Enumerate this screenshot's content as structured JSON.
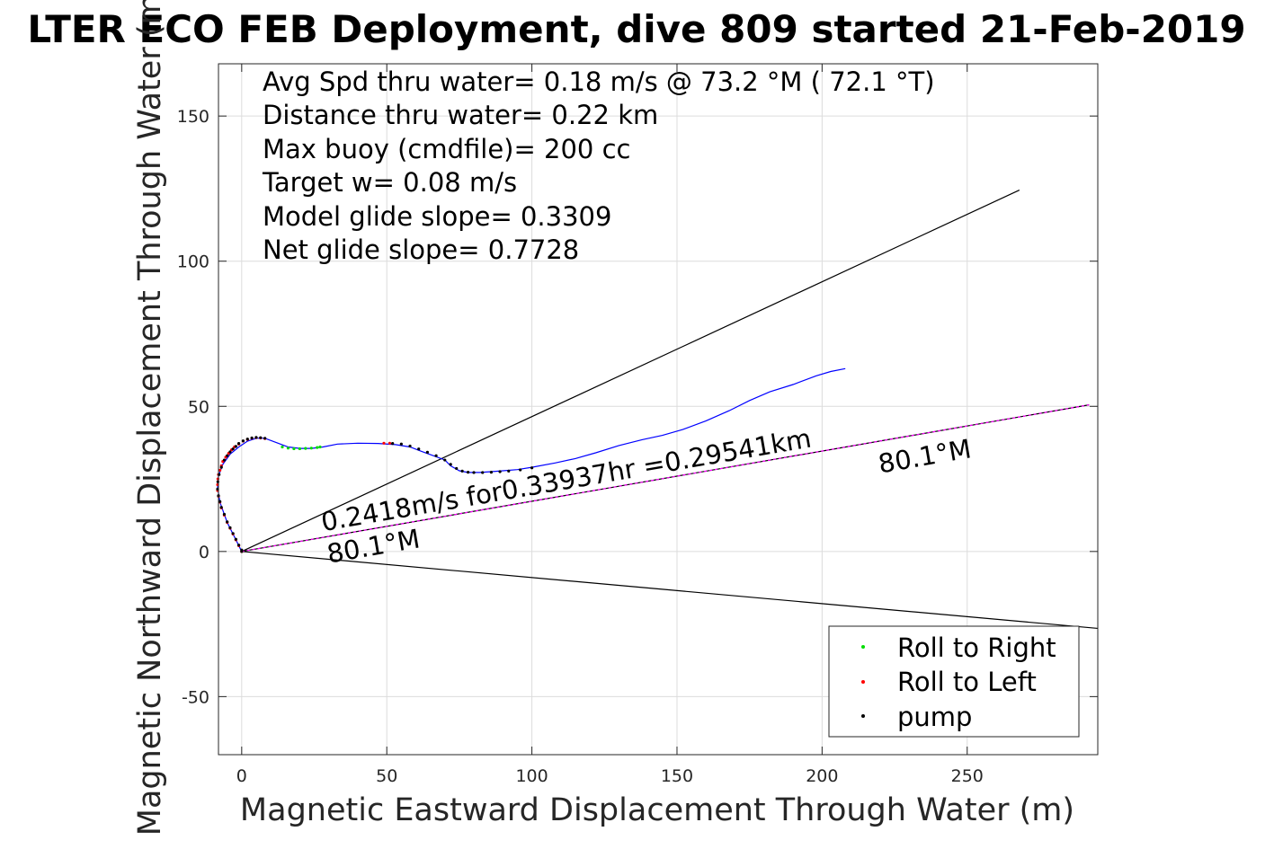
{
  "chart_data": {
    "type": "scatter",
    "title": "LTER ECO FEB Deployment, dive 809 started 21-Feb-2019",
    "xlabel": "Magnetic Eastward Displacement Through Water (m)",
    "ylabel": "Magnetic Northward Displacement Through Water (m)",
    "xlim": [
      -8,
      295
    ],
    "ylim": [
      -70,
      168
    ],
    "xticks": [
      0,
      50,
      100,
      150,
      200,
      250
    ],
    "yticks": [
      -50,
      0,
      50,
      100,
      150
    ],
    "xtick_labels": [
      "0",
      "50",
      "100",
      "150",
      "200",
      "250"
    ],
    "ytick_labels": [
      "-50",
      "0",
      "50",
      "100",
      "150"
    ],
    "grid": true,
    "legend_position": "bottom-right",
    "info_lines": [
      "Avg Spd thru water=  0.18 m/s @  73.2 °M ( 72.1 °T)",
      "Distance thru water=  0.22 km",
      "Max buoy (cmdfile)= 200 cc",
      "Target w= 0.08 m/s",
      "Model glide slope= 0.3309",
      "Net glide slope= 0.7728"
    ],
    "rotated_annotations": [
      {
        "text": "0.2418m/s for0.33937hr =0.29541km",
        "x": 28,
        "y": 7,
        "angle_deg": 9.8
      },
      {
        "text": "80.1°M",
        "x": 30,
        "y": -4,
        "angle_deg": 9.8
      },
      {
        "text": "80.1°M",
        "x": 220,
        "y": 27,
        "angle_deg": 9.8
      }
    ],
    "reference_lines": [
      {
        "x": [
          0,
          268
        ],
        "y": [
          0,
          124.5
        ],
        "color": "#000000"
      },
      {
        "x": [
          0,
          295
        ],
        "y": [
          0,
          -26.5
        ],
        "color": "#000000"
      },
      {
        "x": [
          0,
          292
        ],
        "y": [
          0,
          50.5
        ],
        "color": "#000000"
      },
      {
        "x": [
          0,
          292
        ],
        "y": [
          0,
          50.5
        ],
        "color": "#ff00ff",
        "dash": true
      }
    ],
    "track": {
      "color": "#0000ff",
      "x": [
        0,
        -2,
        -5,
        -7.5,
        -8.3,
        -8,
        -6.5,
        -4,
        -1,
        2,
        5,
        8,
        12,
        16,
        20,
        24,
        28,
        33,
        40,
        47,
        53,
        58,
        62,
        66,
        70,
        72,
        75,
        78,
        82,
        86,
        90,
        95,
        100,
        108,
        115,
        122,
        130,
        138,
        145,
        152,
        160,
        168,
        175,
        182,
        190,
        198,
        203,
        208
      ],
      "y": [
        0,
        4,
        10,
        17,
        22,
        26,
        30,
        33.5,
        36,
        38,
        39,
        39,
        37.5,
        36,
        35.5,
        35.5,
        36,
        37,
        37.3,
        37.2,
        36.8,
        36,
        34.5,
        33,
        31.5,
        29.5,
        27.8,
        27.2,
        27.2,
        27.5,
        27.8,
        28.2,
        29,
        30.5,
        32,
        34,
        36.5,
        38.5,
        40,
        42,
        45,
        48.5,
        52,
        55,
        57.5,
        60.5,
        62,
        63
      ]
    },
    "series": [
      {
        "name": "Roll to Right",
        "color": "#00dd00",
        "x": [
          14,
          16,
          18,
          20,
          22,
          24,
          26,
          27
        ],
        "y": [
          36,
          35.6,
          35.4,
          35.4,
          35.5,
          35.6,
          35.8,
          36
        ]
      },
      {
        "name": "Roll to Left",
        "color": "#ff0000",
        "x": [
          0,
          -1,
          -2,
          -3,
          -4,
          -5,
          -6,
          -7,
          -7.5,
          -8,
          -8.3,
          -8.3,
          -8.2,
          -8,
          -7.5,
          -7,
          -6.5,
          -5.5,
          -4.5,
          -3.5,
          -2.5,
          -1,
          0.5,
          2,
          3.5,
          5,
          6.5,
          8,
          49,
          51
        ],
        "y": [
          0,
          2,
          4,
          6,
          8,
          10,
          12.5,
          15,
          17,
          19,
          21,
          23,
          25,
          26.5,
          28,
          29.5,
          31,
          32.5,
          33.8,
          35,
          36,
          37,
          38,
          38.6,
          39,
          39.2,
          39.1,
          38.9,
          37.3,
          37.3
        ]
      },
      {
        "name": "pump",
        "color": "#000000",
        "x": [
          0,
          0,
          -1,
          -2,
          -3,
          -4,
          -5,
          -6,
          -7,
          -7.5,
          -8,
          -8.3,
          -8.2,
          -7.8,
          -7,
          -6,
          -5,
          -4,
          -3,
          -2,
          -1,
          0.5,
          2,
          3.5,
          5,
          6.5,
          8,
          52,
          55,
          58,
          61,
          64,
          67,
          70,
          72,
          74,
          76,
          78,
          80,
          83,
          86,
          89,
          92,
          96,
          100
        ],
        "y": [
          0,
          0.5,
          2.2,
          4.2,
          6.2,
          8.2,
          10.2,
          12.8,
          15.2,
          17.2,
          19.2,
          21.5,
          24,
          26.5,
          29,
          31.5,
          33,
          34.3,
          35.3,
          36.2,
          37.2,
          38.1,
          38.7,
          39.1,
          39.3,
          39.2,
          39,
          37.2,
          37,
          36.3,
          35.3,
          34.2,
          33,
          31.5,
          30,
          28.6,
          27.7,
          27.3,
          27.2,
          27.2,
          27.3,
          27.5,
          27.7,
          28.1,
          28.8
        ]
      }
    ]
  }
}
